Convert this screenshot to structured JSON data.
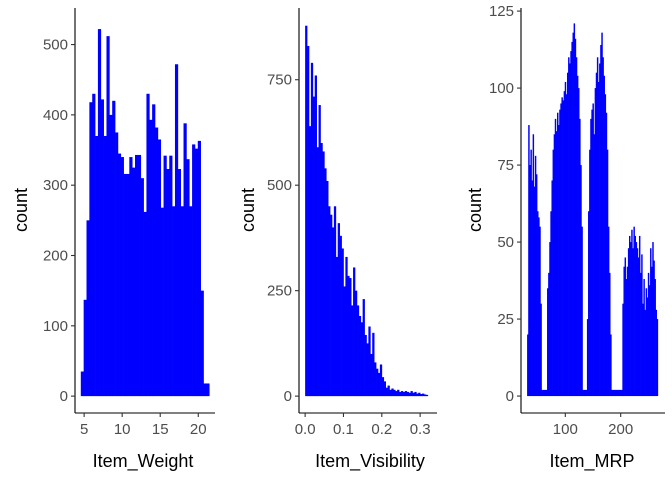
{
  "chart_data": [
    {
      "type": "bar",
      "xlabel": "Item_Weight",
      "ylabel": "count",
      "xlim": [
        3.8,
        22.2
      ],
      "ylim": [
        -24,
        552
      ],
      "xticks": [
        5,
        10,
        15,
        20
      ],
      "xtick_labels": [
        "5",
        "10",
        "15",
        "20"
      ],
      "yticks": [
        0,
        100,
        200,
        300,
        400,
        500
      ],
      "ytick_labels": [
        "0",
        "100",
        "200",
        "300",
        "400",
        "500"
      ],
      "bar_color": "#0000FF",
      "x": [
        4.75,
        5.125,
        5.5,
        5.875,
        6.25,
        6.625,
        7.0,
        7.375,
        7.75,
        8.125,
        8.5,
        8.875,
        9.25,
        9.625,
        10.0,
        10.375,
        10.75,
        11.125,
        11.5,
        11.875,
        12.25,
        12.625,
        13.0,
        13.375,
        13.75,
        14.125,
        14.5,
        14.875,
        15.25,
        15.625,
        16.0,
        16.375,
        16.75,
        17.125,
        17.5,
        17.875,
        18.25,
        18.625,
        19.0,
        19.375,
        19.75,
        20.125,
        20.5,
        20.875,
        21.25
      ],
      "values": [
        35,
        137,
        250,
        418,
        430,
        370,
        522,
        422,
        370,
        512,
        400,
        420,
        375,
        345,
        340,
        316,
        316,
        340,
        325,
        343,
        343,
        310,
        262,
        430,
        393,
        415,
        382,
        365,
        268,
        342,
        323,
        342,
        270,
        472,
        323,
        270,
        388,
        337,
        270,
        358,
        352,
        363,
        150,
        18,
        18
      ],
      "bin_width": 0.375
    },
    {
      "type": "bar",
      "xlabel": "Item_Visibility",
      "ylabel": "count",
      "xlim": [
        -0.016,
        0.344
      ],
      "ylim": [
        -40,
        920
      ],
      "xticks": [
        0.0,
        0.1,
        0.2,
        0.3
      ],
      "xtick_labels": [
        "0.0",
        "0.1",
        "0.2",
        "0.3"
      ],
      "yticks": [
        0,
        250,
        500,
        750
      ],
      "ytick_labels": [
        "0",
        "250",
        "500",
        "750"
      ],
      "bar_color": "#0000FF",
      "bin_width": 0.005,
      "x": [
        0.0025,
        0.0075,
        0.0125,
        0.0175,
        0.0225,
        0.0275,
        0.0325,
        0.0375,
        0.0425,
        0.0475,
        0.0525,
        0.0575,
        0.0625,
        0.0675,
        0.0725,
        0.0775,
        0.0825,
        0.0875,
        0.0925,
        0.0975,
        0.1025,
        0.1075,
        0.1125,
        0.1175,
        0.1225,
        0.1275,
        0.1325,
        0.1375,
        0.1425,
        0.1475,
        0.1525,
        0.1575,
        0.1625,
        0.1675,
        0.1725,
        0.1775,
        0.1825,
        0.1875,
        0.1925,
        0.1975,
        0.2025,
        0.2075,
        0.2125,
        0.2175,
        0.2225,
        0.2275,
        0.2325,
        0.2375,
        0.2425,
        0.2475,
        0.2525,
        0.2575,
        0.2625,
        0.2675,
        0.2725,
        0.2775,
        0.2825,
        0.2875,
        0.2925,
        0.2975,
        0.3025,
        0.3075,
        0.3125,
        0.3175
      ],
      "values": [
        878,
        830,
        640,
        790,
        710,
        760,
        590,
        690,
        600,
        580,
        540,
        510,
        450,
        430,
        400,
        450,
        330,
        410,
        380,
        350,
        260,
        330,
        285,
        280,
        215,
        305,
        250,
        215,
        190,
        175,
        230,
        145,
        125,
        165,
        100,
        150,
        80,
        65,
        55,
        75,
        45,
        35,
        20,
        25,
        15,
        18,
        15,
        12,
        15,
        10,
        12,
        10,
        12,
        10,
        8,
        12,
        8,
        10,
        6,
        8,
        5,
        6,
        4,
        3
      ]
    },
    {
      "type": "bar",
      "xlabel": "Item_MRP",
      "ylabel": "count",
      "xlim": [
        20,
        280
      ],
      "ylim": [
        -5.5,
        126
      ],
      "xticks": [
        100,
        200
      ],
      "xtick_labels": [
        "100",
        "200"
      ],
      "yticks": [
        0,
        25,
        50,
        75,
        100,
        125
      ],
      "ytick_labels": [
        "0",
        "25",
        "50",
        "75",
        "100",
        "125"
      ],
      "bar_color": "#0000FF",
      "bin_width": 2,
      "x": [
        32,
        34,
        36,
        38,
        40,
        42,
        44,
        46,
        48,
        50,
        52,
        54,
        56,
        58,
        60,
        62,
        64,
        66,
        68,
        70,
        72,
        74,
        76,
        78,
        80,
        82,
        84,
        86,
        88,
        90,
        92,
        94,
        96,
        98,
        100,
        102,
        104,
        106,
        108,
        110,
        112,
        114,
        116,
        118,
        120,
        122,
        124,
        126,
        128,
        130,
        132,
        134,
        136,
        138,
        140,
        142,
        144,
        146,
        148,
        150,
        152,
        154,
        156,
        158,
        160,
        162,
        164,
        166,
        168,
        170,
        172,
        174,
        176,
        178,
        180,
        182,
        184,
        186,
        188,
        190,
        192,
        194,
        196,
        198,
        200,
        202,
        204,
        206,
        208,
        210,
        212,
        214,
        216,
        218,
        220,
        222,
        224,
        226,
        228,
        230,
        232,
        234,
        236,
        238,
        240,
        242,
        244,
        246,
        248,
        250,
        252,
        254,
        256,
        258,
        260,
        262,
        264,
        266
      ],
      "values": [
        20,
        88,
        75,
        80,
        70,
        85,
        68,
        78,
        72,
        60,
        58,
        55,
        30,
        2,
        2,
        2,
        2,
        2,
        35,
        40,
        50,
        60,
        70,
        80,
        85,
        90,
        86,
        92,
        88,
        93,
        95,
        97,
        96,
        99,
        102,
        98,
        105,
        110,
        108,
        112,
        115,
        118,
        121,
        116,
        110,
        104,
        100,
        90,
        75,
        55,
        2,
        2,
        2,
        2,
        25,
        60,
        80,
        90,
        93,
        95,
        85,
        100,
        105,
        110,
        102,
        108,
        114,
        118,
        110,
        104,
        98,
        92,
        80,
        55,
        40,
        20,
        2,
        2,
        2,
        2,
        2,
        2,
        2,
        2,
        2,
        2,
        30,
        42,
        45,
        38,
        42,
        48,
        52,
        50,
        54,
        48,
        55,
        52,
        50,
        48,
        45,
        52,
        40,
        46,
        30,
        38,
        28,
        35,
        32,
        40,
        36,
        48,
        42,
        50,
        44,
        38,
        28,
        25
      ]
    }
  ]
}
